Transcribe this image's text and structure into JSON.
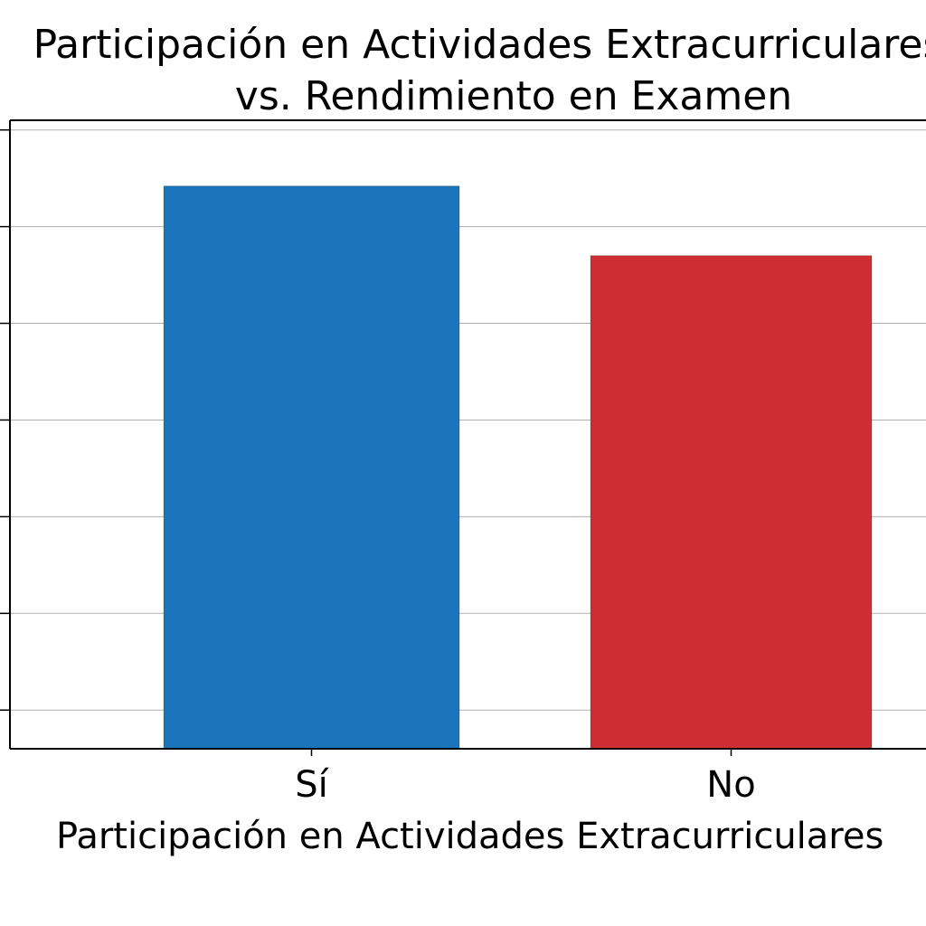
{
  "chart_data": {
    "type": "bar",
    "title_lines": [
      "Participación en Actividades Extracurriculares",
      "vs. Rendimiento en Examen"
    ],
    "xlabel": "Participación en Actividades Extracurriculares",
    "ylabel": "",
    "categories": [
      "Sí",
      "No"
    ],
    "values": [
      58.2,
      51.0
    ],
    "ylim": [
      0,
      65
    ],
    "ytick_values": [
      4,
      14,
      24,
      34,
      44,
      54,
      64
    ],
    "grid": true,
    "colors": [
      "#1a75bb",
      "#cc2e31"
    ]
  }
}
